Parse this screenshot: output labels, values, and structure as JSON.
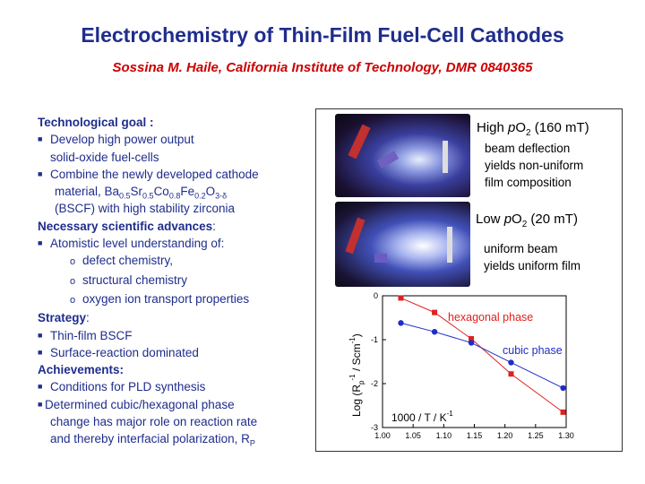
{
  "header": {
    "title": "Electrochemistry of Thin-Film Fuel-Cell Cathodes",
    "subtitle": "Sossina M. Haile, California Institute of Technology,  DMR  0840365"
  },
  "left": {
    "tech_goal": "Technological goal :",
    "tg1a": "Develop high power output",
    "tg1b": "solid-oxide fuel-cells",
    "tg2a": "Combine the newly developed cathode",
    "tg2b_pre": "material, Ba",
    "s1": "0.5",
    "sr": "Sr",
    "s2": "0.5",
    "co": "Co",
    "s3": "0.8",
    "fe": "Fe",
    "s4": "0.2",
    "o": "O",
    "s5": "3-δ",
    "tg2c": "(BSCF) with high stability zirconia",
    "nec_adv": "Necessary scientific advances",
    "colon": ":",
    "na1": "Atomistic level understanding of:",
    "na1a": "defect chemistry,",
    "na1b": "structural chemistry",
    "na1c": "oxygen ion transport properties",
    "strategy": "Strategy",
    "colon2": ":",
    "st1": "Thin-film BSCF",
    "st2": "Surface-reaction dominated",
    "achievements": "Achievements:",
    "ac1": "Conditions for PLD synthesis",
    "ac2a": "Determined cubic/hexagonal phase",
    "ac2b": "change has major role on reaction rate",
    "ac2c_pre": "and thereby interfacial polarization, R",
    "ac2c_sub": "P"
  },
  "panel": {
    "high_pre": "High ",
    "high_p": "p",
    "high_o": "O",
    "high_sub": "2",
    "high_post": " (160 mT)",
    "high_desc1": "beam deflection",
    "high_desc2": "yields non-uniform",
    "high_desc3": "film composition",
    "low_pre": "Low ",
    "low_p": "p",
    "low_o": "O",
    "low_sub": "2",
    "low_post": " (20 mT)",
    "low_desc1": "uniform beam",
    "low_desc2": "yields uniform film"
  },
  "chart_data": {
    "type": "line",
    "xlim": [
      1.0,
      1.3
    ],
    "ylim": [
      -3,
      0
    ],
    "xticks": [
      "1.00",
      "1.05",
      "1.10",
      "1.15",
      "1.20",
      "1.25",
      "1.30"
    ],
    "yticks": [
      "0",
      "-1",
      "-2",
      "-3"
    ],
    "xlabel_text": "1000 / T    /  K",
    "xlabel_sup": "-1",
    "ylabel_pre": "Log (R",
    "ylabel_sub": "p",
    "ylabel_sup": "-1",
    "ylabel_mid": "  / Scm",
    "ylabel_sup2": "-1",
    "ylabel_post": ")",
    "series": [
      {
        "name": "hexagonal phase",
        "color": "#e02020",
        "marker": "square",
        "x": [
          1.03,
          1.085,
          1.145,
          1.21,
          1.295
        ],
        "y": [
          -0.05,
          -0.38,
          -0.98,
          -1.78,
          -2.65
        ]
      },
      {
        "name": "cubic phase",
        "color": "#1f2dc8",
        "marker": "circle",
        "x": [
          1.03,
          1.085,
          1.145,
          1.21,
          1.295
        ],
        "y": [
          -0.62,
          -0.82,
          -1.07,
          -1.52,
          -2.1
        ]
      }
    ]
  }
}
